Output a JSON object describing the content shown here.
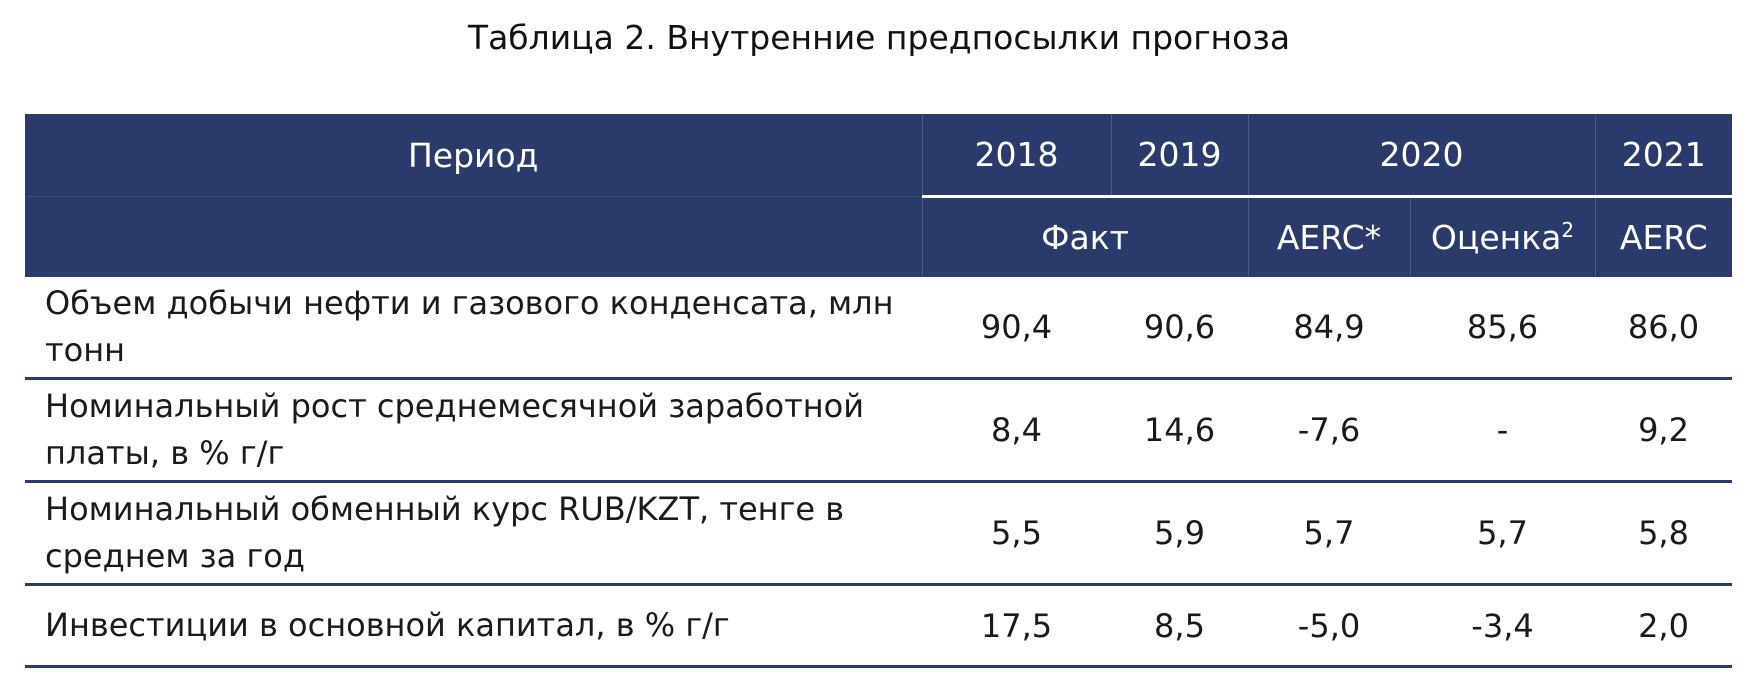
{
  "title": "Таблица 2. Внутренние предпосылки прогноза",
  "header": {
    "period_label": "Период",
    "years": [
      "2018",
      "2019",
      "2020",
      "2021"
    ],
    "sub": {
      "fact": "Факт",
      "aerc_2020": "AERC*",
      "estimate": "Оценка",
      "estimate_sup": "2",
      "aerc_2021": "AERC"
    }
  },
  "rows": [
    {
      "label": "Объем добычи нефти и газового конденсата, млн тонн",
      "values": [
        "90,4",
        "90,6",
        "84,9",
        "85,6",
        "86,0"
      ]
    },
    {
      "label": "Номинальный рост среднемесячной заработной платы, в % г/г",
      "values": [
        "8,4",
        "14,6",
        "-7,6",
        "-",
        "9,2"
      ]
    },
    {
      "label": "Номинальный обменный курс RUB/KZT, тенге в среднем за год",
      "values": [
        "5,5",
        "5,9",
        "5,7",
        "5,7",
        "5,8"
      ]
    },
    {
      "label": "Инвестиции в основной капитал, в % г/г",
      "values": [
        "17,5",
        "8,5",
        "-5,0",
        "-3,4",
        "2,0"
      ]
    }
  ],
  "colors": {
    "header_bg": "#2a3b6b",
    "header_text": "#ffffff",
    "row_divider": "#2a3b6b"
  }
}
